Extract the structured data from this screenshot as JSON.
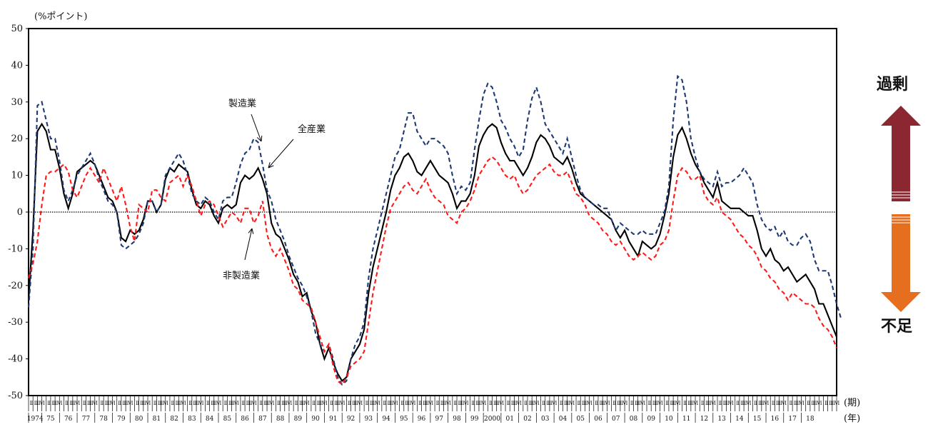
{
  "ylabel": "(%ポイント)",
  "x_period_label": "(期)",
  "x_year_label": "(年)",
  "side_labels": {
    "top": "過剰",
    "bottom": "不足"
  },
  "colors": {
    "all": "#000000",
    "manufacturing": "#1f3a73",
    "non_manufacturing": "#ff1a1a",
    "arrow_top": "#8b2730",
    "arrow_bottom": "#e56e1f"
  },
  "chart_data": {
    "type": "line",
    "xlabel": "(期) (年)",
    "ylabel": "(%ポイント)",
    "ylim": [
      -50,
      50
    ],
    "yticks": [
      50,
      40,
      30,
      20,
      10,
      0,
      -10,
      -20,
      -30,
      -40,
      -50
    ],
    "quarter_labels": [
      "Ⅰ",
      "Ⅱ",
      "Ⅲ",
      "Ⅳ"
    ],
    "year_labels": [
      "1974",
      "75",
      "76",
      "77",
      "78",
      "79",
      "80",
      "81",
      "82",
      "83",
      "84",
      "85",
      "86",
      "87",
      "88",
      "89",
      "90",
      "91",
      "92",
      "93",
      "94",
      "95",
      "96",
      "97",
      "98",
      "99",
      "2000",
      "01",
      "02",
      "03",
      "04",
      "05",
      "06",
      "07",
      "08",
      "09",
      "10",
      "11",
      "12",
      "13",
      "14",
      "15",
      "16",
      "17",
      "18"
    ],
    "x_start_year": 1974,
    "x_start_quarter": 2,
    "grid": false,
    "series": [
      {
        "name": "全産業",
        "values": [
          -24,
          -5,
          22,
          24,
          22,
          17,
          17,
          12,
          5,
          1,
          5,
          11,
          12,
          13,
          14,
          13,
          10,
          7,
          4,
          3,
          0,
          -7,
          -8,
          -5,
          -6,
          -5,
          -2,
          3,
          3,
          0,
          2,
          9,
          12,
          11,
          13,
          12,
          11,
          6,
          2,
          1,
          3,
          2,
          -1,
          -3,
          1,
          2,
          1,
          2,
          8,
          10,
          9,
          10,
          12,
          9,
          5,
          -3,
          -6,
          -7,
          -10,
          -13,
          -17,
          -19,
          -23,
          -22,
          -27,
          -30,
          -36,
          -40,
          -37,
          -41,
          -44,
          -46,
          -45,
          -40,
          -38,
          -36,
          -32,
          -22,
          -15,
          -10,
          -5,
          0,
          6,
          10,
          12,
          15,
          16,
          14,
          11,
          10,
          12,
          14,
          12,
          10,
          9,
          8,
          5,
          1,
          3,
          3,
          5,
          10,
          18,
          21,
          23,
          24,
          23,
          19,
          16,
          14,
          14,
          12,
          10,
          12,
          15,
          19,
          21,
          20,
          18,
          15,
          14,
          13,
          15,
          12,
          8,
          5,
          4,
          3,
          2,
          1,
          0,
          -1,
          -2,
          -5,
          -7,
          -5,
          -8,
          -10,
          -12,
          -8,
          -9,
          -10,
          -9,
          -6,
          -1,
          5,
          15,
          21,
          23,
          20,
          16,
          13,
          11,
          8,
          6,
          4,
          8,
          3,
          2,
          1,
          1,
          1,
          0,
          -1,
          -1,
          -5,
          -10,
          -12,
          -10,
          -13,
          -14,
          -16,
          -15,
          -17,
          -19,
          -18,
          -17,
          -19,
          -21,
          -25,
          -25,
          -28,
          -31,
          -34
        ]
      },
      {
        "name": "製造業",
        "values": [
          -26,
          -10,
          29,
          30,
          25,
          20,
          20,
          14,
          6,
          3,
          6,
          10,
          12,
          14,
          16,
          13,
          9,
          6,
          3,
          2,
          0,
          -9,
          -10,
          -9,
          -8,
          -6,
          -3,
          3,
          3,
          0,
          2,
          10,
          12,
          14,
          16,
          14,
          10,
          5,
          3,
          2,
          4,
          3,
          0,
          -2,
          3,
          4,
          4,
          8,
          13,
          16,
          17,
          20,
          19,
          13,
          6,
          3,
          -2,
          -5,
          -8,
          -12,
          -15,
          -18,
          -20,
          -23,
          -27,
          -33,
          -36,
          -38,
          -36,
          -40,
          -45,
          -47,
          -46,
          -40,
          -36,
          -34,
          -30,
          -18,
          -10,
          -5,
          0,
          5,
          10,
          15,
          17,
          22,
          27,
          27,
          22,
          20,
          18,
          20,
          20,
          19,
          18,
          16,
          10,
          5,
          7,
          6,
          8,
          17,
          25,
          32,
          35,
          34,
          30,
          25,
          23,
          20,
          18,
          15,
          17,
          25,
          31,
          34,
          30,
          24,
          22,
          20,
          18,
          16,
          20,
          15,
          10,
          6,
          4,
          3,
          2,
          2,
          1,
          1,
          -2,
          -5,
          -3,
          -4,
          -5,
          -6,
          -6,
          -5,
          -6,
          -6,
          -6,
          -3,
          0,
          7,
          25,
          37,
          36,
          30,
          20,
          15,
          11,
          9,
          8,
          7,
          11,
          7,
          8,
          8,
          9,
          10,
          12,
          10,
          8,
          2,
          -2,
          -4,
          -5,
          -4,
          -7,
          -5,
          -8,
          -9,
          -9,
          -7,
          -6,
          -8,
          -13,
          -16,
          -16,
          -16,
          -20,
          -25,
          -29
        ]
      },
      {
        "name": "非製造業",
        "values": [
          -18,
          -14,
          -8,
          2,
          10,
          11,
          11,
          12,
          13,
          11,
          6,
          4,
          7,
          10,
          12,
          10,
          8,
          12,
          9,
          6,
          3,
          7,
          2,
          -4,
          -8,
          2,
          1,
          0,
          6,
          6,
          4,
          3,
          8,
          9,
          10,
          7,
          10,
          7,
          3,
          -1,
          2,
          3,
          2,
          -1,
          -4,
          -2,
          0,
          -1,
          -3,
          1,
          1,
          -3,
          -1,
          3,
          -6,
          -10,
          -12,
          -10,
          -13,
          -16,
          -20,
          -21,
          -24,
          -25,
          -26,
          -30,
          -34,
          -38,
          -36,
          -42,
          -46,
          -47,
          -45,
          -42,
          -41,
          -40,
          -38,
          -30,
          -22,
          -16,
          -10,
          -4,
          1,
          3,
          5,
          7,
          8,
          6,
          5,
          7,
          9,
          6,
          4,
          3,
          2,
          -1,
          -2,
          -3,
          0,
          1,
          3,
          6,
          10,
          12,
          14,
          15,
          14,
          12,
          10,
          9,
          10,
          7,
          5,
          6,
          8,
          10,
          11,
          12,
          13,
          11,
          10,
          10,
          11,
          8,
          5,
          4,
          2,
          -1,
          -2,
          -3,
          -5,
          -6,
          -8,
          -9,
          -8,
          -10,
          -12,
          -13,
          -12,
          -11,
          -12,
          -13,
          -12,
          -9,
          -8,
          -5,
          3,
          10,
          12,
          11,
          9,
          9,
          10,
          5,
          3,
          2,
          4,
          0,
          -1,
          -2,
          -4,
          -6,
          -7,
          -9,
          -10,
          -12,
          -15,
          -16,
          -18,
          -19,
          -21,
          -22,
          -24,
          -22,
          -23,
          -24,
          -25,
          -25,
          -26,
          -29,
          -31,
          -32,
          -34,
          -37
        ]
      }
    ],
    "annotations": [
      {
        "text": "製造業",
        "series": "製造業"
      },
      {
        "text": "全産業",
        "series": "全産業"
      },
      {
        "text": "非製造業",
        "series": "非製造業"
      }
    ]
  }
}
